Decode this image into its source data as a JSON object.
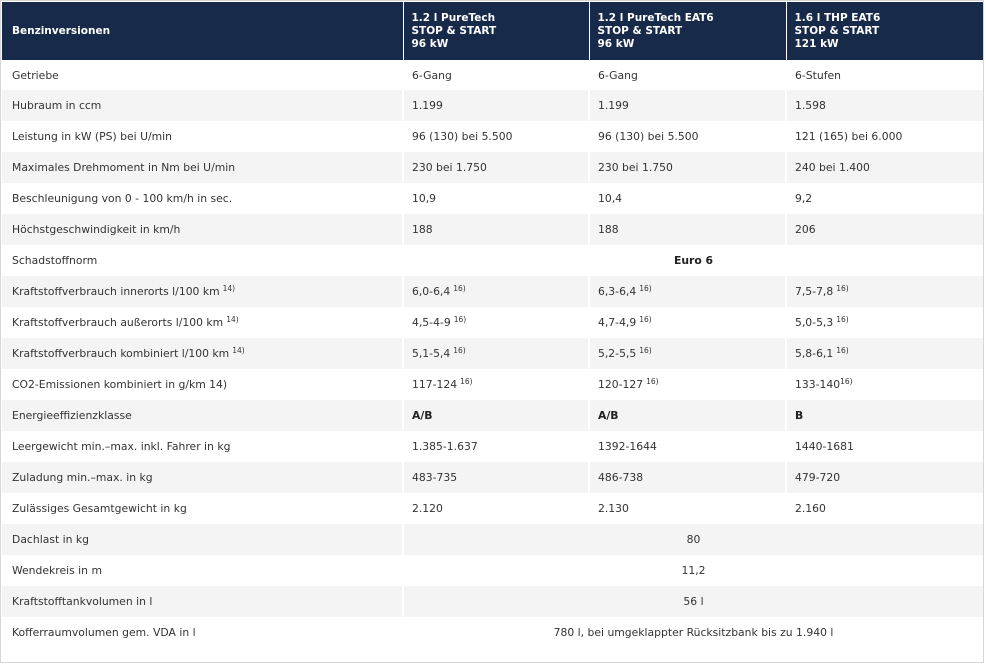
{
  "header": {
    "col0": "Benzinversionen",
    "engines": [
      {
        "line1": "1.2 l PureTech",
        "line2": "STOP & START",
        "line3": "96 kW"
      },
      {
        "line1": "1.2 l PureTech EAT6",
        "line2": "STOP & START",
        "line3": "96 kW"
      },
      {
        "line1": "1.6 l THP EAT6",
        "line2": "STOP & START",
        "line3": "121 kW"
      }
    ]
  },
  "rows": {
    "getriebe": {
      "label": "Getriebe",
      "v": [
        "6-Gang",
        "6-Gang",
        "6-Stufen"
      ]
    },
    "hubraum": {
      "label": "Hubraum in ccm",
      "v": [
        "1.199",
        "1.199",
        "1.598"
      ]
    },
    "leistung": {
      "label": "Leistung in kW (PS) bei U/min",
      "v": [
        "96 (130) bei 5.500",
        "96 (130) bei 5.500",
        "121 (165) bei 6.000"
      ]
    },
    "drehmoment": {
      "label": "Maximales Drehmoment in Nm bei U/min",
      "v": [
        "230 bei 1.750",
        "230 bei 1.750",
        "240 bei 1.400"
      ]
    },
    "beschleunigung": {
      "label": "Beschleunigung von 0 - 100 km/h in sec.",
      "v": [
        "10,9",
        "10,4",
        "9,2"
      ]
    },
    "hoechst": {
      "label": "Höchstgeschwindigkeit in km/h",
      "v": [
        "188",
        "188",
        "206"
      ]
    },
    "schadstoff": {
      "label": "Schadstoffnorm",
      "value": "Euro 6"
    },
    "inner": {
      "label": "Kraftstoffverbrauch innerorts l/100 km",
      "label_sup": "14)",
      "v": [
        "6,0-6,4",
        "6,3-6,4",
        "7,5-7,8"
      ],
      "sup": "16)"
    },
    "ausser": {
      "label": "Kraftstoffverbrauch außerorts l/100 km",
      "label_sup": "14)",
      "v": [
        "4,5-4-9",
        "4,7-4,9",
        "5,0-5,3"
      ],
      "sup": "16)"
    },
    "kombi": {
      "label": "Kraftstoffverbrauch kombiniert l/100 km",
      "label_sup": "14)",
      "v": [
        "5,1-5,4",
        "5,2-5,5",
        "5,8-6,1"
      ],
      "sup": "16)"
    },
    "co2": {
      "label": "CO2-Emissionen kombiniert in g/km 14)",
      "v": [
        "117-124",
        "120-127",
        "133-140"
      ],
      "sup": "16)"
    },
    "effizienz": {
      "label": "Energieeffizienzklasse",
      "v": [
        "A/B",
        "A/B",
        "B"
      ]
    },
    "leergewicht": {
      "label": "Leergewicht min.–max. inkl. Fahrer in kg",
      "v": [
        "1.385-1.637",
        "1392-1644",
        "1440-1681"
      ]
    },
    "zuladung": {
      "label": "Zuladung min.–max. in kg",
      "v": [
        "483-735",
        "486-738",
        "479-720"
      ]
    },
    "gesamtgewicht": {
      "label": "Zulässiges Gesamtgewicht in kg",
      "v": [
        "2.120",
        "2.130",
        "2.160"
      ]
    },
    "dachlast": {
      "label": "Dachlast in kg",
      "value": "80"
    },
    "wendekreis": {
      "label": "Wendekreis in m",
      "value": "11,2"
    },
    "tank": {
      "label": "Kraftstofftankvolumen in l",
      "value": "56 l"
    },
    "koffer": {
      "label": "Kofferraumvolumen gem. VDA in l",
      "value": "780 l, bei umgeklappter Rücksitzbank bis zu 1.940 l"
    }
  }
}
